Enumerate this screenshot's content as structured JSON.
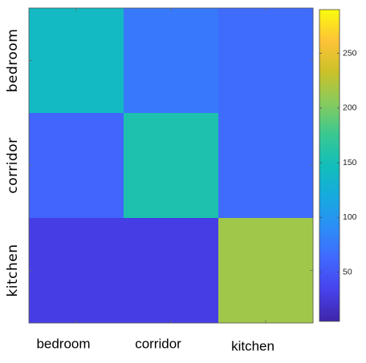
{
  "chart_data": {
    "type": "heatmap",
    "row_labels": [
      "bedroom",
      "corridor",
      "kitchen"
    ],
    "col_labels": [
      "bedroom",
      "corridor",
      "kitchen"
    ],
    "values": [
      [
        140,
        75,
        65
      ],
      [
        60,
        155,
        65
      ],
      [
        30,
        30,
        215
      ]
    ],
    "colorbar": {
      "min": 5,
      "max": 290,
      "ticks": [
        50,
        100,
        150,
        200,
        250
      ],
      "colormap": "parula"
    },
    "grid": false
  }
}
